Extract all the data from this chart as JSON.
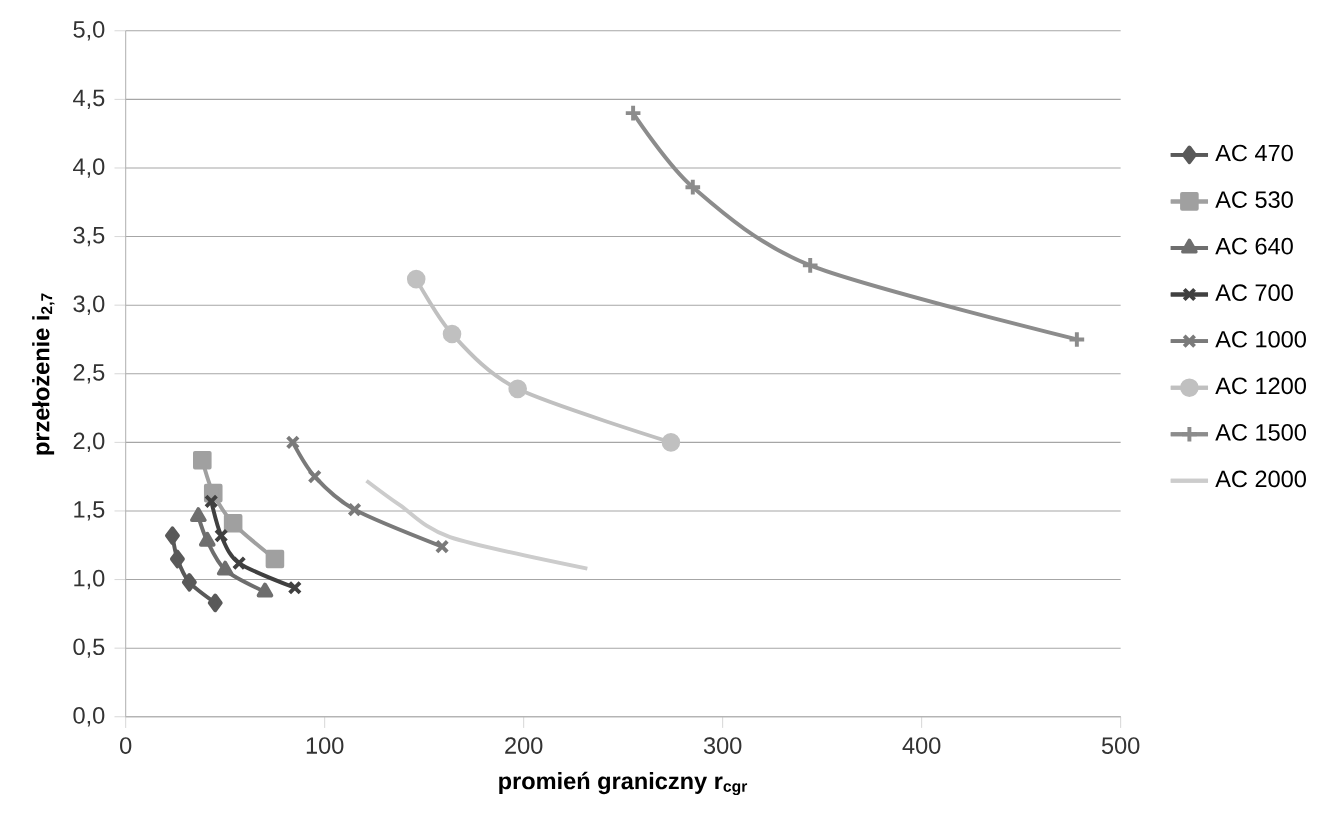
{
  "chart_data": {
    "type": "line",
    "xlabel": "promień graniczny r$_{cgr}$",
    "ylabel": "przełożenie i$_{2,7}$",
    "xlim": [
      0,
      500
    ],
    "xticks": [
      0,
      100,
      200,
      300,
      400,
      500
    ],
    "ylim": [
      0,
      5
    ],
    "yticks": [
      {
        "value": 0,
        "label": "0,0"
      },
      {
        "value": 0.5,
        "label": "0,5"
      },
      {
        "value": 1,
        "label": "1,0"
      },
      {
        "value": 1.5,
        "label": "1,5"
      },
      {
        "value": 2,
        "label": "2,0"
      },
      {
        "value": 2.5,
        "label": "2,5"
      },
      {
        "value": 3,
        "label": "3,0"
      },
      {
        "value": 3.5,
        "label": "3,5"
      },
      {
        "value": 4,
        "label": "4,0"
      },
      {
        "value": 4.5,
        "label": "4,5"
      },
      {
        "value": 5,
        "label": "5,0"
      }
    ],
    "grid": "y",
    "legend": "right",
    "series": [
      {
        "name": "AC 470",
        "color": "#595959",
        "marker": "diamond",
        "x": [
          23.5,
          26,
          32,
          45
        ],
        "values": [
          1.32,
          1.15,
          0.98,
          0.83
        ]
      },
      {
        "name": "AC 530",
        "color": "#a0a0a0",
        "marker": "square",
        "x": [
          38.5,
          44,
          54,
          75
        ],
        "values": [
          1.87,
          1.63,
          1.41,
          1.15
        ]
      },
      {
        "name": "AC 640",
        "color": "#6e6e6e",
        "marker": "triangle",
        "x": [
          36.5,
          41,
          50,
          70
        ],
        "values": [
          1.46,
          1.28,
          1.07,
          0.91
        ]
      },
      {
        "name": "AC 700",
        "color": "#404040",
        "marker": "cross",
        "x": [
          43,
          48,
          57,
          85
        ],
        "values": [
          1.57,
          1.32,
          1.12,
          0.94
        ]
      },
      {
        "name": "AC 1000",
        "color": "#7a7a7a",
        "marker": "cross",
        "x": [
          84,
          95,
          115,
          159
        ],
        "values": [
          2.0,
          1.75,
          1.51,
          1.24
        ]
      },
      {
        "name": "AC 1200",
        "color": "#c0c0c0",
        "marker": "circle",
        "x": [
          146,
          164,
          197,
          274
        ],
        "values": [
          3.19,
          2.79,
          2.39,
          2.0
        ]
      },
      {
        "name": "AC 1500",
        "color": "#8c8c8c",
        "marker": "plus",
        "x": [
          255,
          285,
          344,
          478
        ],
        "values": [
          4.4,
          3.86,
          3.29,
          2.75
        ]
      },
      {
        "name": "AC 2000",
        "color": "#cccccc",
        "marker": "none",
        "x": [
          121,
          138,
          163,
          232
        ],
        "values": [
          1.72,
          1.54,
          1.31,
          1.08
        ]
      }
    ]
  }
}
